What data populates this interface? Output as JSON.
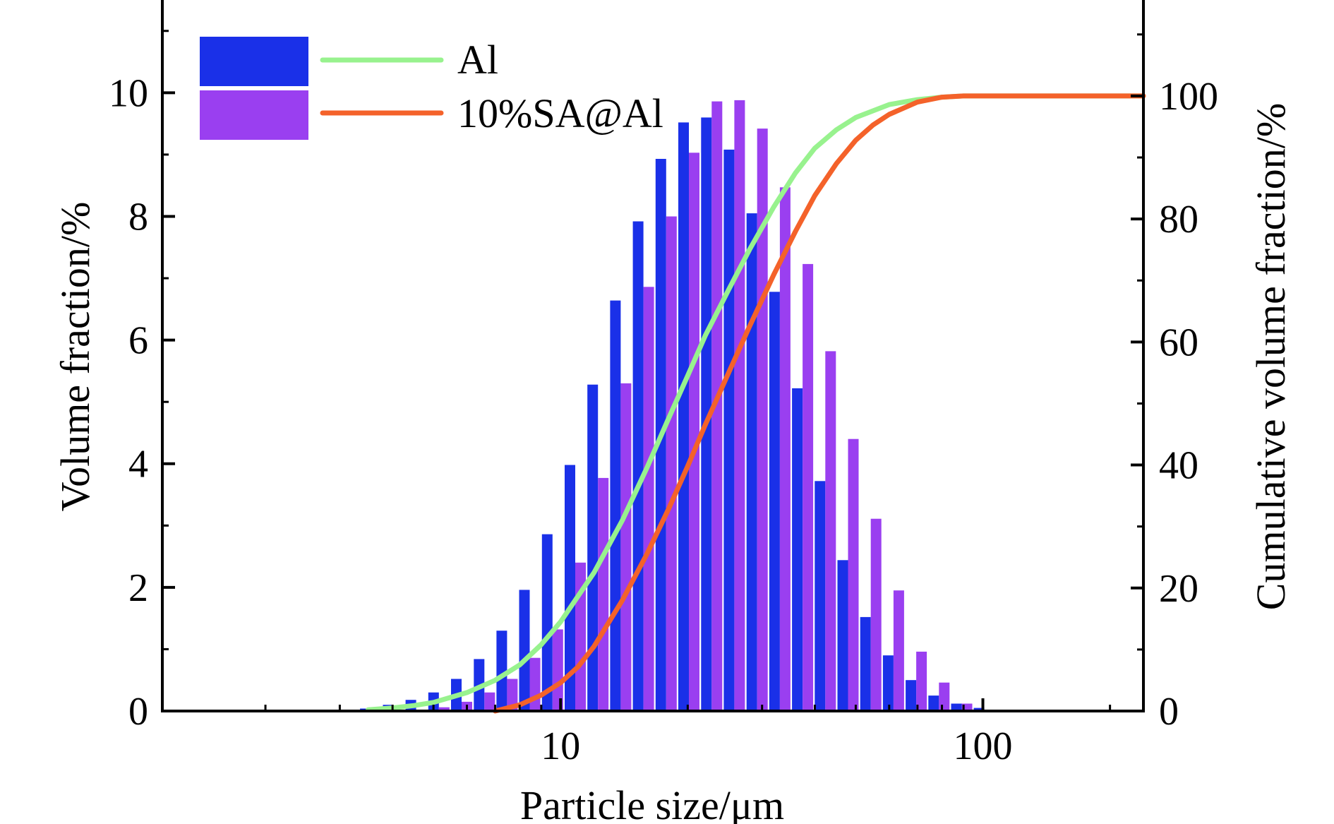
{
  "chart_data": {
    "type": "bar",
    "x_scale": "log",
    "xlabel": "Particle size/μm",
    "ylabel": "Volume fraction/%",
    "y2label": "Cumulative volume fraction/%",
    "xlim": [
      1.14,
      240
    ],
    "ylim": [
      0,
      11.5
    ],
    "y2lim": [
      0,
      115.6
    ],
    "x_ticks": [
      10,
      100
    ],
    "y_ticks": [
      0,
      2,
      4,
      6,
      8,
      10
    ],
    "y2_ticks": [
      0,
      20,
      40,
      60,
      80,
      100
    ],
    "legend": {
      "position": "top-left"
    },
    "colors": {
      "Al_bar": "#1a30e8",
      "SA_bar": "#9a3ff0",
      "Al_line": "#98f28e",
      "SA_line": "#f4622a"
    },
    "x": [
      3.55,
      4.02,
      4.55,
      5.15,
      5.83,
      6.6,
      7.47,
      8.45,
      9.57,
      10.83,
      12.26,
      13.88,
      15.71,
      17.78,
      20.13,
      22.79,
      25.79,
      29.2,
      33.05,
      37.41,
      42.35,
      47.94,
      54.26,
      61.42,
      69.52,
      78.7,
      89.08,
      100.8
    ],
    "series": [
      {
        "name": "Al",
        "type": "bar",
        "axis": "left",
        "values": [
          0.04,
          0.1,
          0.18,
          0.3,
          0.52,
          0.84,
          1.3,
          1.96,
          2.86,
          3.98,
          5.28,
          6.64,
          7.92,
          8.93,
          9.52,
          9.6,
          9.08,
          8.05,
          6.78,
          5.22,
          3.72,
          2.44,
          1.52,
          0.9,
          0.5,
          0.25,
          0.12,
          0.05
        ]
      },
      {
        "name": "10%SA@Al",
        "type": "bar",
        "axis": "left",
        "values": [
          0.0,
          0.0,
          0.02,
          0.06,
          0.15,
          0.3,
          0.52,
          0.86,
          1.32,
          2.4,
          3.77,
          5.3,
          6.86,
          8.0,
          9.03,
          9.86,
          9.88,
          9.42,
          8.47,
          7.23,
          5.82,
          4.4,
          3.11,
          1.95,
          0.96,
          0.46,
          0.12,
          0.02
        ]
      },
      {
        "name": "Al",
        "type": "line",
        "axis": "right",
        "x": [
          3.5,
          4.0,
          4.5,
          5.0,
          6.0,
          7.0,
          8.0,
          9.0,
          10.0,
          12.0,
          14.0,
          16.0,
          18.0,
          20.0,
          22.0,
          25.0,
          28.0,
          32.0,
          36.0,
          40.0,
          45.0,
          50.0,
          60.0,
          70.0,
          80.0,
          90.0,
          100.0,
          240.0
        ],
        "values": [
          0.2,
          0.5,
          0.9,
          1.4,
          3.0,
          5.0,
          7.5,
          10.8,
          14.5,
          22.5,
          31.0,
          39.5,
          47.5,
          54.5,
          61.0,
          68.5,
          75.0,
          82.0,
          87.5,
          91.5,
          94.5,
          96.5,
          98.6,
          99.4,
          99.8,
          100.0,
          100.0,
          100.0
        ]
      },
      {
        "name": "10%SA@Al",
        "type": "line",
        "axis": "right",
        "x": [
          7.0,
          8.0,
          9.0,
          10.0,
          11.0,
          12.0,
          14.0,
          16.0,
          18.0,
          20.0,
          22.0,
          25.0,
          28.0,
          32.0,
          36.0,
          40.0,
          45.0,
          50.0,
          55.0,
          60.0,
          70.0,
          80.0,
          90.0,
          100.0,
          240.0
        ],
        "values": [
          0.0,
          1.0,
          2.6,
          4.6,
          7.2,
          10.5,
          18.0,
          25.5,
          32.8,
          39.8,
          46.5,
          55.0,
          62.5,
          71.0,
          78.0,
          83.8,
          89.0,
          92.8,
          95.3,
          97.0,
          99.0,
          99.8,
          100.0,
          100.0,
          100.0
        ]
      }
    ]
  }
}
